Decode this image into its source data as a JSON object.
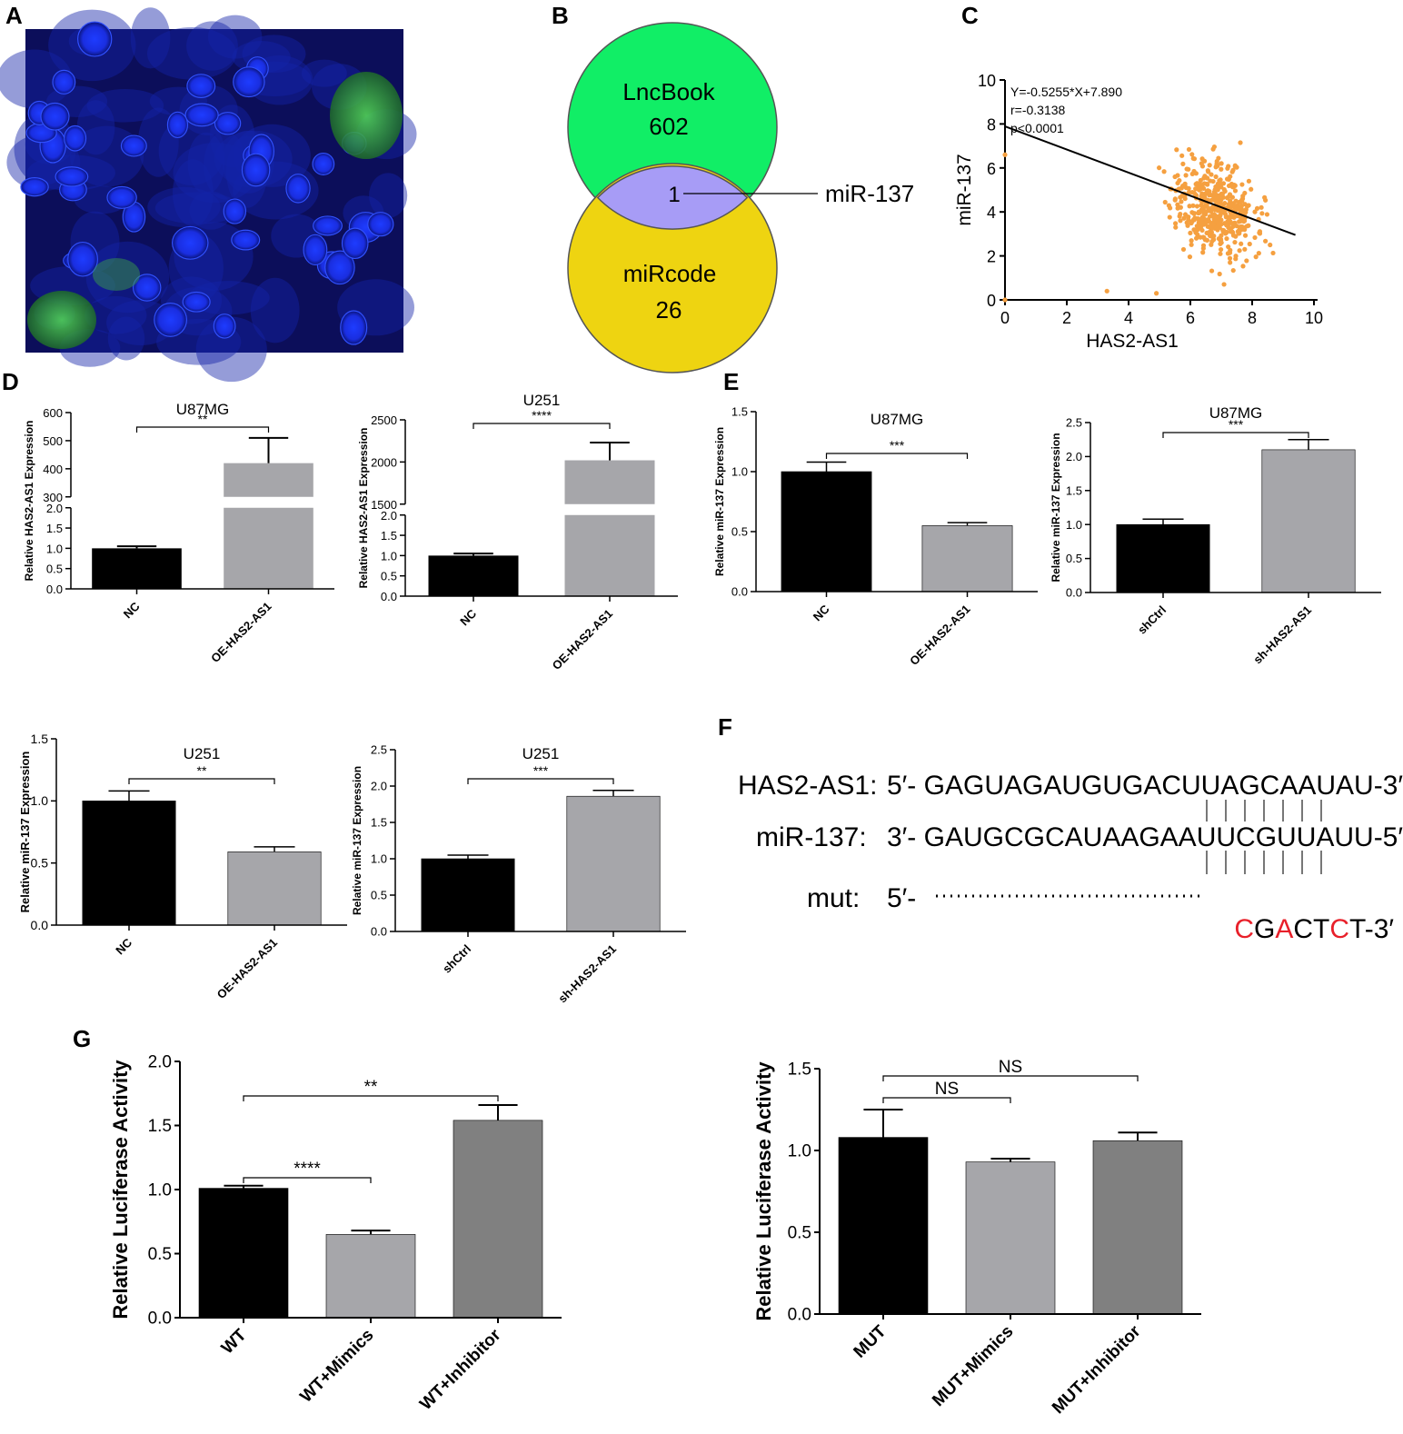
{
  "panels": {
    "A": "A",
    "B": "B",
    "C": "C",
    "D": "D",
    "E": "E",
    "F": "F",
    "G": "G"
  },
  "colors": {
    "black_bar": "#000000",
    "light_grey_bar": "#a6a6aa",
    "dark_grey_bar": "#808080",
    "venn_green": "#11ee66",
    "venn_yellow": "#eed411",
    "venn_overlap": "#a79cf6",
    "scatter_orange": "#f5a040",
    "mut_red": "#e8202a",
    "micro_blue": "#1a2ee0",
    "micro_green": "#3fbb3f"
  },
  "venn": {
    "top_label": "LncBook",
    "top_count": "602",
    "bottom_label": "miRcode",
    "bottom_count": "26",
    "overlap_count": "1",
    "overlap_annotation": "miR-137"
  },
  "sequence": {
    "row1_label": "HAS2-AS1:",
    "row1_seq": "5′- GAGUAGAUGUGACUUAGCAAUAU-3′",
    "row2_label": "miR-137:",
    "row2_seq": "3′- GAUGCGCAUAAGAAUUCGUUAUU-5′",
    "row3_label": "mut:",
    "row3_prefix": "5′-",
    "row3_mut_chars": [
      "C",
      "G",
      "A",
      "C",
      "T",
      "C"
    ],
    "row3_mut_red": [
      true,
      false,
      true,
      false,
      false,
      true
    ],
    "row3_suffix": "T-3′"
  },
  "chart_data": [
    {
      "id": "C",
      "type": "scatter",
      "xlabel": "HAS2-AS1",
      "ylabel": "miR-137",
      "xlim": [
        0,
        10
      ],
      "ylim": [
        0,
        10
      ],
      "xticks": [
        "0",
        "2",
        "4",
        "6",
        "8",
        "10"
      ],
      "yticks": [
        "0",
        "2",
        "4",
        "6",
        "8",
        "10"
      ],
      "annotation": [
        "Y=-0.5255*X+7.890",
        "r=-0.3138",
        "p<0.0001"
      ],
      "regression": {
        "slope": -0.5255,
        "intercept": 7.89,
        "x_range": [
          0,
          9.4
        ]
      },
      "note": "approx. 500 points, cloud centred near (6.8, 4)"
    },
    {
      "id": "D1",
      "type": "bar",
      "title": "U87MG",
      "ylabel": "Relative HAS2-AS1 Expression",
      "categories": [
        "NC",
        "OE-HAS2-AS1"
      ],
      "values": [
        1.0,
        420
      ],
      "errors": [
        0.05,
        90
      ],
      "broken_axis": {
        "lower": [
          0,
          2.0
        ],
        "upper": [
          300,
          600
        ]
      },
      "lower_ticks": [
        "0.0",
        "0.5",
        "1.0",
        "1.5",
        "2.0"
      ],
      "upper_ticks": [
        "300",
        "400",
        "500",
        "600"
      ],
      "significance": [
        {
          "between": [
            0,
            1
          ],
          "label": "**"
        }
      ]
    },
    {
      "id": "D2",
      "type": "bar",
      "title": "U251",
      "ylabel": "Relative HAS2-AS1 Expression",
      "categories": [
        "NC",
        "OE-HAS2-AS1"
      ],
      "values": [
        1.0,
        2020
      ],
      "errors": [
        0.05,
        210
      ],
      "broken_axis": {
        "lower": [
          0,
          2.0
        ],
        "upper": [
          1500,
          2500
        ]
      },
      "lower_ticks": [
        "0.0",
        "0.5",
        "1.0",
        "1.5",
        "2.0"
      ],
      "upper_ticks": [
        "1500",
        "2000",
        "2500"
      ],
      "significance": [
        {
          "between": [
            0,
            1
          ],
          "label": "****"
        }
      ]
    },
    {
      "id": "E1",
      "type": "bar",
      "title": "U87MG",
      "ylabel": "Relative miR-137 Expression",
      "categories": [
        "NC",
        "OE-HAS2-AS1"
      ],
      "values": [
        1.0,
        0.55
      ],
      "errors": [
        0.08,
        0.025
      ],
      "ylim": [
        0,
        1.5
      ],
      "yticks": [
        "0.0",
        "0.5",
        "1.0",
        "1.5"
      ],
      "significance": [
        {
          "between": [
            0,
            1
          ],
          "label": "***"
        }
      ]
    },
    {
      "id": "E2",
      "type": "bar",
      "title": "U87MG",
      "ylabel": "Relative miR-137 Expression",
      "categories": [
        "shCtrl",
        "sh-HAS2-AS1"
      ],
      "values": [
        1.0,
        2.1
      ],
      "errors": [
        0.08,
        0.15
      ],
      "ylim": [
        0,
        2.5
      ],
      "yticks": [
        "0.0",
        "0.5",
        "1.0",
        "1.5",
        "2.0",
        "2.5"
      ],
      "significance": [
        {
          "between": [
            0,
            1
          ],
          "label": "***"
        }
      ]
    },
    {
      "id": "E3",
      "type": "bar",
      "title": "U251",
      "ylabel": "Relative miR-137 Expression",
      "categories": [
        "NC",
        "OE-HAS2-AS1"
      ],
      "values": [
        1.0,
        0.59
      ],
      "errors": [
        0.08,
        0.04
      ],
      "ylim": [
        0,
        1.5
      ],
      "yticks": [
        "0.0",
        "0.5",
        "1.0",
        "1.5"
      ],
      "significance": [
        {
          "between": [
            0,
            1
          ],
          "label": "**"
        }
      ]
    },
    {
      "id": "E4",
      "type": "bar",
      "title": "U251",
      "ylabel": "Relative miR-137 Expression",
      "categories": [
        "shCtrl",
        "sh-HAS2-AS1"
      ],
      "values": [
        1.0,
        1.86
      ],
      "errors": [
        0.05,
        0.08
      ],
      "ylim": [
        0,
        2.5
      ],
      "yticks": [
        "0.0",
        "0.5",
        "1.0",
        "1.5",
        "2.0",
        "2.5"
      ],
      "significance": [
        {
          "between": [
            0,
            1
          ],
          "label": "***"
        }
      ]
    },
    {
      "id": "G1",
      "type": "bar",
      "ylabel": "Relative Luciferase Activity",
      "categories": [
        "WT",
        "WT+Mimics",
        "WT+Inhibitor"
      ],
      "values": [
        1.01,
        0.65,
        1.54
      ],
      "errors": [
        0.02,
        0.03,
        0.12
      ],
      "ylim": [
        0,
        2.0
      ],
      "yticks": [
        "0.0",
        "0.5",
        "1.0",
        "1.5",
        "2.0"
      ],
      "significance": [
        {
          "between": [
            0,
            1
          ],
          "label": "****"
        },
        {
          "between": [
            0,
            2
          ],
          "label": "**"
        }
      ]
    },
    {
      "id": "G2",
      "type": "bar",
      "ylabel": "Relative Luciferase Activity",
      "categories": [
        "MUT",
        "MUT+Mimics",
        "MUT+Inhibitor"
      ],
      "values": [
        1.08,
        0.93,
        1.06
      ],
      "errors": [
        0.17,
        0.02,
        0.05
      ],
      "ylim": [
        0,
        1.5
      ],
      "yticks": [
        "0.0",
        "0.5",
        "1.0",
        "1.5"
      ],
      "significance": [
        {
          "between": [
            0,
            1
          ],
          "label": "NS"
        },
        {
          "between": [
            0,
            2
          ],
          "label": "NS"
        }
      ]
    }
  ]
}
